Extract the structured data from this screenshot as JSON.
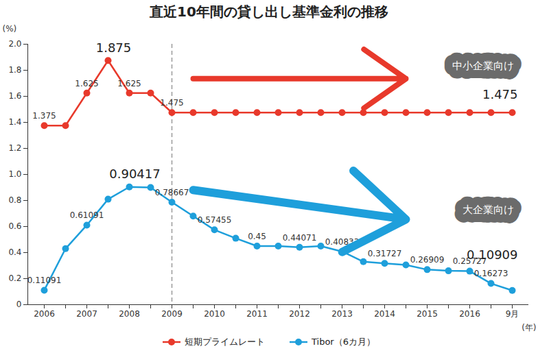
{
  "chart_data": {
    "type": "line",
    "title": "直近10年間の貸し出し基準金利の推移",
    "x_label": "(年)",
    "y_label": "(%)",
    "categories": [
      "2006",
      null,
      "2007",
      null,
      "2008",
      null,
      "2009",
      null,
      "2010",
      null,
      "2011",
      null,
      "2012",
      null,
      "2013",
      null,
      "2014",
      null,
      "2015",
      null,
      "2016",
      null,
      "9月"
    ],
    "series": [
      {
        "name": "短期プライムレート",
        "color": "#e8392b",
        "marker": "circle",
        "values": [
          1.375,
          1.375,
          1.625,
          1.875,
          1.625,
          1.625,
          1.475,
          1.475,
          1.475,
          1.475,
          1.475,
          1.475,
          1.475,
          1.475,
          1.475,
          1.475,
          1.475,
          1.475,
          1.475,
          1.475,
          1.475,
          1.475,
          1.475
        ],
        "value_labels": [
          "1.375",
          null,
          "1.625",
          "1.875",
          "1.625",
          null,
          "1.475",
          null,
          null,
          null,
          null,
          null,
          null,
          null,
          null,
          null,
          null,
          null,
          null,
          null,
          null,
          null,
          "1.475"
        ]
      },
      {
        "name": "Tibor（6カ月）",
        "color": "#1e9fdb",
        "marker": "circle",
        "values": [
          0.11091,
          0.43,
          0.61091,
          0.81,
          0.90417,
          0.9,
          0.78667,
          0.68,
          0.57455,
          0.51,
          0.45,
          0.45,
          0.44071,
          0.45,
          0.40833,
          0.33,
          0.31727,
          0.305,
          0.26909,
          0.26,
          0.25727,
          0.16273,
          0.10909
        ],
        "value_labels": [
          "0.11091",
          null,
          "0.61091",
          null,
          "0.90417",
          null,
          "0.78667",
          null,
          "0.57455",
          null,
          "0.45",
          null,
          "0.44071",
          null,
          "0.40833",
          null,
          "0.31727",
          null,
          "0.26909",
          null,
          "0.25727",
          "0.16273",
          "0.10909"
        ]
      }
    ],
    "ylim": [
      0,
      2
    ],
    "yticks": [
      0,
      0.2,
      0.4,
      0.6,
      0.8,
      {
        "value": 1,
        "label": "1.0"
      },
      1.2,
      1.4,
      1.6,
      1.8,
      {
        "value": 2,
        "label": "2.0"
      }
    ],
    "grid": false,
    "legend": "bottom",
    "data_labels": true,
    "reference_line": {
      "x": "2009",
      "line_style": "dashed"
    },
    "annotations": [
      {
        "text": "中小企業向け",
        "series": "短期プライムレート"
      },
      {
        "text": "大企業向け",
        "series": "Tibor（6カ月）"
      }
    ]
  }
}
